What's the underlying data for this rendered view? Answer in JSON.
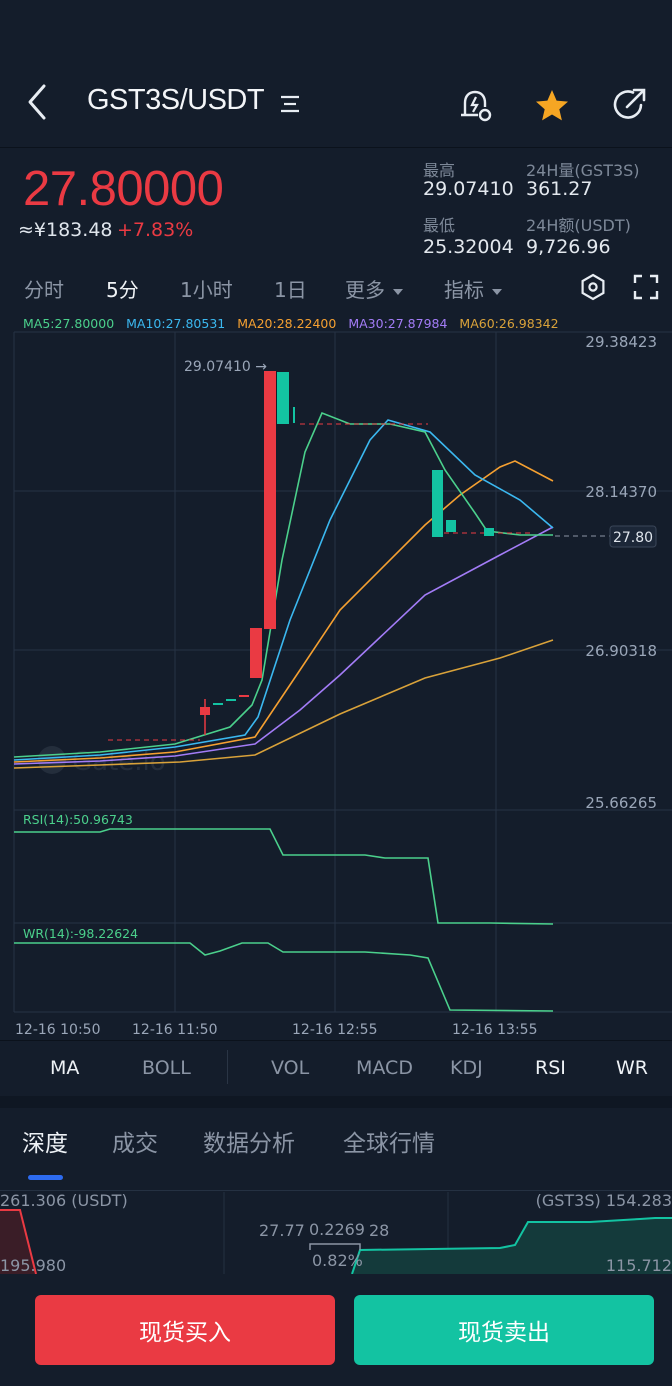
{
  "header": {
    "pair": "GST3S/USDT",
    "icons": [
      "back-arrow-icon",
      "menu-lines-icon",
      "price-alert-icon",
      "star-icon",
      "share-icon"
    ]
  },
  "ticker": {
    "price": "27.80000",
    "cny": "≈¥183.48",
    "change": "+7.83%",
    "high_label": "最高",
    "high": "29.07410",
    "low_label": "最低",
    "low": "25.32004",
    "vol_label": "24H量(GST3S)",
    "vol": "361.27",
    "amt_label": "24H额(USDT)",
    "amt": "9,726.96"
  },
  "time_tabs": [
    "分时",
    "5分",
    "1小时",
    "1日",
    "更多",
    "指标"
  ],
  "active_time_tab": "5分",
  "ma_legend": {
    "ma5": "MA5:27.80000",
    "ma10": "MA10:27.80531",
    "ma20": "MA20:28.22400",
    "ma30": "MA30:27.87984",
    "ma60": "MA60:26.98342"
  },
  "chart": {
    "price_ticks": [
      "29.38423",
      "28.14370",
      "26.90318",
      "25.66265"
    ],
    "high_marker": "29.07410 →",
    "last_price_tag": "27.80",
    "rsi_label": "RSI(14):50.96743",
    "wr_label": "WR(14):-98.22624",
    "time_labels": [
      "12-16 10:50",
      "12-16 11:50",
      "12-16 12:55",
      "12-16 13:55"
    ],
    "watermark": "Gate.io"
  },
  "chart_data": {
    "type": "candlestick",
    "y_range": [
      25.66265,
      29.38423
    ],
    "ma_values": {
      "MA5": 27.8,
      "MA10": 27.80531,
      "MA20": 28.224,
      "MA30": 27.87984,
      "MA60": 26.98342
    },
    "rsi_14": 50.96743,
    "wr_14": -98.22624
  },
  "indicators": [
    "MA",
    "BOLL",
    "VOL",
    "MACD",
    "KDJ",
    "RSI",
    "WR"
  ],
  "active_indicators": [
    "MA",
    "RSI",
    "WR"
  ],
  "bottom_tabs": [
    "深度",
    "成交",
    "数据分析",
    "全球行情"
  ],
  "active_bottom_tab": "深度",
  "depth": {
    "bid_top": "261.306 (USDT)",
    "bid_mid": "195.980",
    "ask_top": "(GST3S) 154.283",
    "ask_mid": "115.712",
    "left_price": "27.77",
    "spread": "0.2269",
    "right_price": "28",
    "spread_pct": "0.82%"
  },
  "actions": {
    "buy": "现货买入",
    "sell": "现货卖出"
  },
  "colors": {
    "up": "#ea3a43",
    "down": "#13c3a2",
    "background": "#141d2b",
    "ma5": "#4bd08c",
    "ma10": "#3bb8f0",
    "ma20": "#f5a031",
    "ma30": "#a37cf7",
    "ma60": "#d9a23a"
  }
}
